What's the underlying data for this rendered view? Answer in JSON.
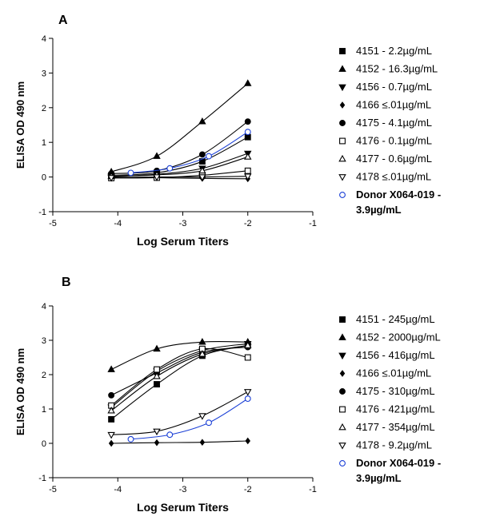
{
  "chart_data": [
    {
      "panel": "A",
      "type": "line",
      "xlabel": "Log Serum Titers",
      "ylabel": "ELISA OD 490 nm",
      "xlim": [
        -5,
        -1
      ],
      "ylim": [
        -1,
        4
      ],
      "xticks": [
        "-5",
        "-4",
        "-3",
        "-2",
        "-1"
      ],
      "yticks": [
        "-1",
        "0",
        "1",
        "2",
        "3",
        "4"
      ],
      "grid": false,
      "legend_position": "right",
      "series": [
        {
          "name": "4151 - 2.2µg/mL",
          "marker": "square-filled",
          "color": "#000000",
          "x": [
            -4.1,
            -3.4,
            -2.7,
            -2.0
          ],
          "y": [
            0.05,
            0.12,
            0.45,
            1.15
          ]
        },
        {
          "name": "4152 - 16.3µg/mL",
          "marker": "triangle-up-filled",
          "color": "#000000",
          "x": [
            -4.1,
            -3.4,
            -2.7,
            -2.0
          ],
          "y": [
            0.15,
            0.6,
            1.6,
            2.7
          ]
        },
        {
          "name": "4156 - 0.7µg/mL",
          "marker": "triangle-down-filled",
          "color": "#000000",
          "x": [
            -4.1,
            -3.4,
            -2.7,
            -2.0
          ],
          "y": [
            0.02,
            0.08,
            0.25,
            0.68
          ]
        },
        {
          "name": "4166 ≤.01µg/mL",
          "marker": "diamond-filled",
          "color": "#000000",
          "x": [
            -4.1,
            -3.4,
            -2.7,
            -2.0
          ],
          "y": [
            0.0,
            -0.02,
            -0.04,
            -0.05
          ]
        },
        {
          "name": "4175 - 4.1µg/mL",
          "marker": "circle-filled",
          "color": "#000000",
          "x": [
            -4.1,
            -3.4,
            -2.7,
            -2.0
          ],
          "y": [
            0.1,
            0.18,
            0.65,
            1.6
          ]
        },
        {
          "name": "4176 - 0.1µg/mL",
          "marker": "square-open",
          "color": "#000000",
          "x": [
            -4.1,
            -3.4,
            -2.7,
            -2.0
          ],
          "y": [
            -0.03,
            -0.02,
            0.05,
            0.18
          ]
        },
        {
          "name": "4177 - 0.6µg/mL",
          "marker": "triangle-up-open",
          "color": "#000000",
          "x": [
            -4.1,
            -3.4,
            -2.7,
            -2.0
          ],
          "y": [
            0.02,
            0.06,
            0.18,
            0.58
          ]
        },
        {
          "name": "4178 ≤.01µg/mL",
          "marker": "triangle-down-open",
          "color": "#000000",
          "x": [
            -4.1,
            -3.4,
            -2.7,
            -2.0
          ],
          "y": [
            -0.02,
            0.0,
            0.0,
            0.02
          ]
        },
        {
          "name": "Donor X064-019 - 3.9µg/mL",
          "marker": "circle-open",
          "color": "#1a3fd6",
          "x": [
            -3.8,
            -3.2,
            -2.6,
            -2.0
          ],
          "y": [
            0.12,
            0.25,
            0.6,
            1.3
          ]
        }
      ]
    },
    {
      "panel": "B",
      "type": "line",
      "xlabel": "Log Serum Titers",
      "ylabel": "ELISA OD 490 nm",
      "xlim": [
        -5,
        -1
      ],
      "ylim": [
        -1,
        4
      ],
      "xticks": [
        "-5",
        "-4",
        "-3",
        "-2",
        "-1"
      ],
      "yticks": [
        "-1",
        "0",
        "1",
        "2",
        "3",
        "4"
      ],
      "grid": false,
      "legend_position": "right",
      "series": [
        {
          "name": "4151 - 245µg/mL",
          "marker": "square-filled",
          "color": "#000000",
          "x": [
            -4.1,
            -3.4,
            -2.7,
            -2.0
          ],
          "y": [
            0.7,
            1.72,
            2.55,
            2.85
          ]
        },
        {
          "name": "4152 - 2000µg/mL",
          "marker": "triangle-up-filled",
          "color": "#000000",
          "x": [
            -4.1,
            -3.4,
            -2.7,
            -2.0
          ],
          "y": [
            2.15,
            2.75,
            2.95,
            2.95
          ]
        },
        {
          "name": "4156 - 416µg/mL",
          "marker": "triangle-down-filled",
          "color": "#000000",
          "x": [
            -4.1,
            -3.4,
            -2.7,
            -2.0
          ],
          "y": [
            1.05,
            2.1,
            2.7,
            2.9
          ]
        },
        {
          "name": "4166 ≤.01µg/mL",
          "marker": "diamond-filled",
          "color": "#000000",
          "x": [
            -4.1,
            -3.4,
            -2.7,
            -2.0
          ],
          "y": [
            0.0,
            0.02,
            0.03,
            0.07
          ]
        },
        {
          "name": "4175 - 310µg/mL",
          "marker": "circle-filled",
          "color": "#000000",
          "x": [
            -4.1,
            -3.4,
            -2.7,
            -2.0
          ],
          "y": [
            1.4,
            2.05,
            2.65,
            2.8
          ]
        },
        {
          "name": "4176 - 421µg/mL",
          "marker": "square-open",
          "color": "#000000",
          "x": [
            -4.1,
            -3.4,
            -2.7,
            -2.0
          ],
          "y": [
            1.1,
            2.15,
            2.75,
            2.5
          ]
        },
        {
          "name": "4177 - 354µg/mL",
          "marker": "triangle-up-open",
          "color": "#000000",
          "x": [
            -4.1,
            -3.4,
            -2.7,
            -2.0
          ],
          "y": [
            0.95,
            1.95,
            2.6,
            2.85
          ]
        },
        {
          "name": "4178 - 9.2µg/mL",
          "marker": "triangle-down-open",
          "color": "#000000",
          "x": [
            -4.1,
            -3.4,
            -2.7,
            -2.0
          ],
          "y": [
            0.25,
            0.35,
            0.8,
            1.5
          ]
        },
        {
          "name": "Donor X064-019 - 3.9µg/mL",
          "marker": "circle-open",
          "color": "#1a3fd6",
          "x": [
            -3.8,
            -3.2,
            -2.6,
            -2.0
          ],
          "y": [
            0.12,
            0.25,
            0.6,
            1.3
          ]
        }
      ]
    }
  ]
}
